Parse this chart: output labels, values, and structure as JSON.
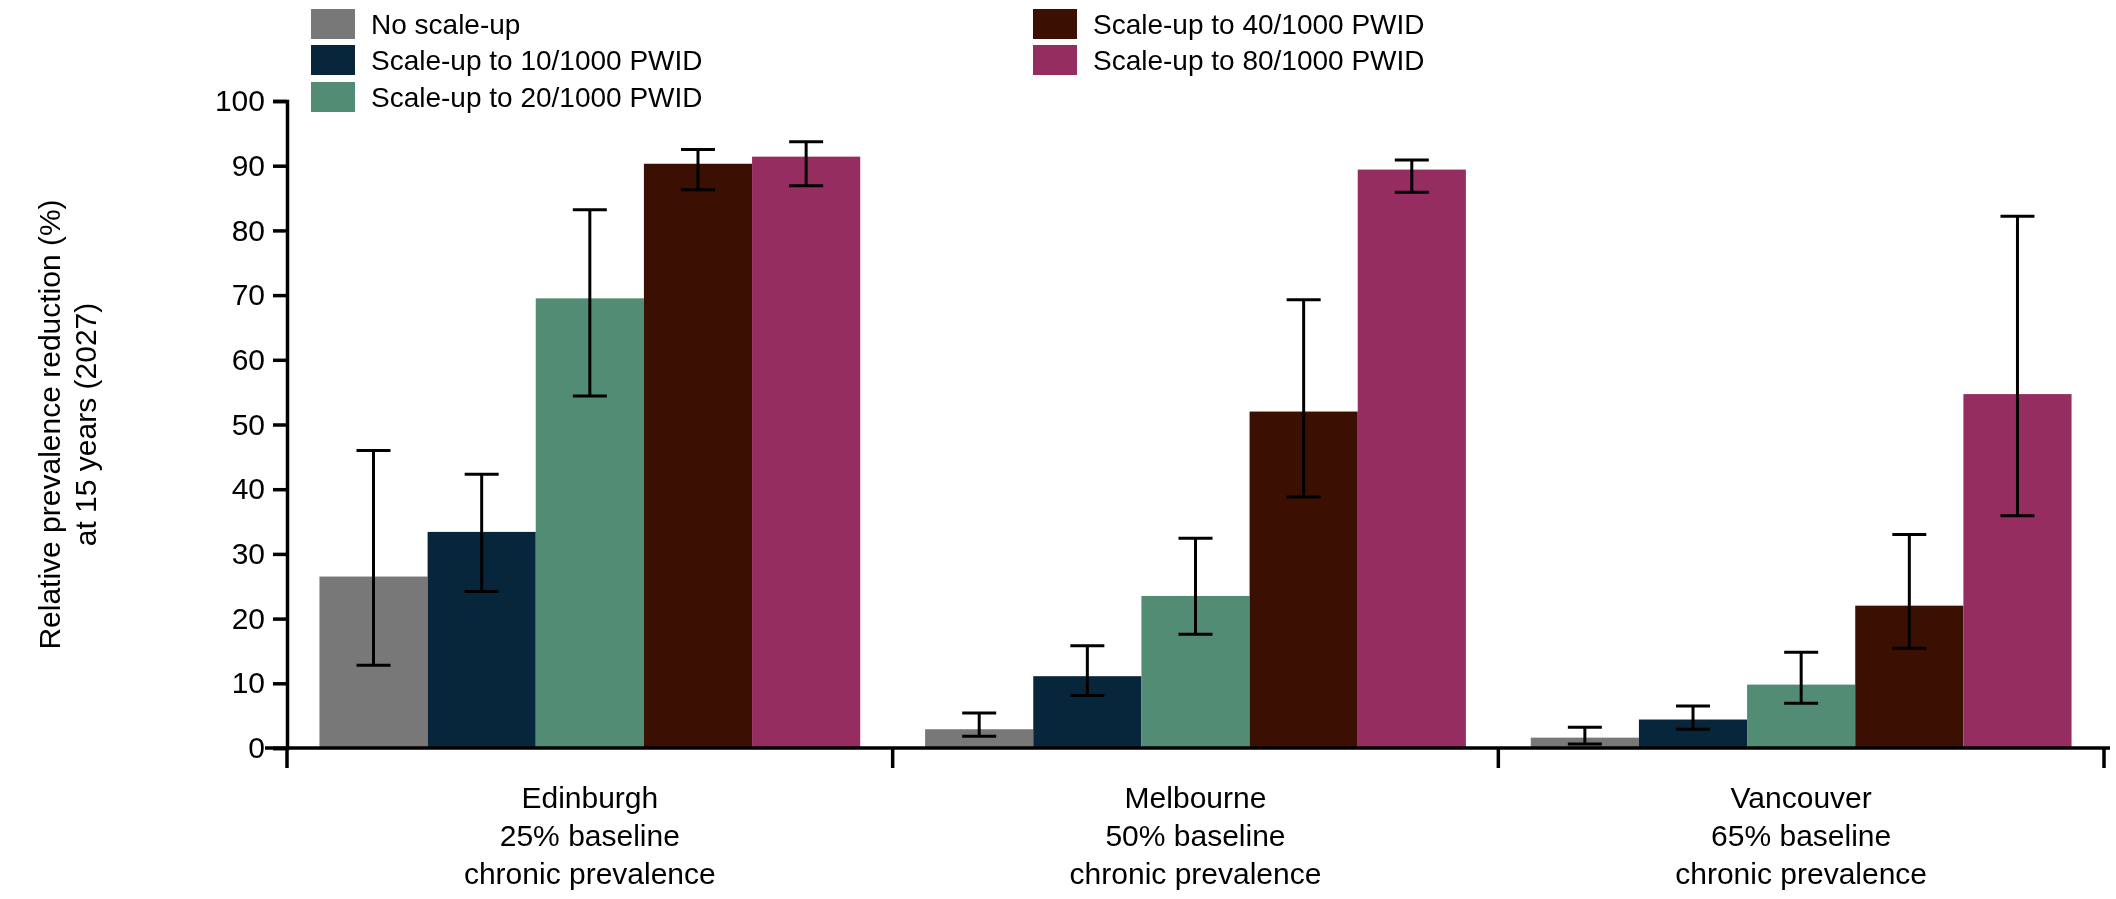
{
  "chart_data": {
    "type": "bar",
    "ylabel": "Relative prevalence reduction (%)\nat 15 years (2027)",
    "categories": [
      "Edinburgh\n25% baseline\nchronic prevalence",
      "Melbourne\n50% baseline\nchronic prevalence",
      "Vancouver\n65% baseline\nchronic prevalence"
    ],
    "series": [
      {
        "name": "No scale-up",
        "color": "#787878",
        "values": [
          26.5,
          2.9,
          1.6
        ],
        "errors": [
          [
            12.8,
            46
          ],
          [
            1.8,
            5.4
          ],
          [
            0.6,
            3.2
          ]
        ]
      },
      {
        "name": "Scale-up to 10/1000 PWID",
        "color": "#08263b",
        "values": [
          33.4,
          11.1,
          4.4
        ],
        "errors": [
          [
            24.2,
            42.3
          ],
          [
            8.1,
            15.8
          ],
          [
            2.9,
            6.5
          ]
        ]
      },
      {
        "name": "Scale-up to 20/1000 PWID",
        "color": "#528c74",
        "values": [
          69.5,
          23.5,
          9.8
        ],
        "errors": [
          [
            54.4,
            83.2
          ],
          [
            17.6,
            32.4
          ],
          [
            6.9,
            14.8
          ]
        ]
      },
      {
        "name": "Scale-up to 40/1000 PWID",
        "color": "#3b0f02",
        "values": [
          90.3,
          52,
          22
        ],
        "errors": [
          [
            86.3,
            92.5
          ],
          [
            38.8,
            69.3
          ],
          [
            15.4,
            33
          ]
        ]
      },
      {
        "name": "Scale-up to 80/1000 PWID",
        "color": "#952d60",
        "values": [
          91.4,
          89.4,
          54.7
        ],
        "errors": [
          [
            86.9,
            93.7
          ],
          [
            85.9,
            90.9
          ],
          [
            35.9,
            82.2
          ]
        ]
      }
    ],
    "ylim": [
      0,
      100
    ],
    "yticks": [
      0,
      10,
      20,
      30,
      40,
      50,
      60,
      70,
      80,
      90,
      100
    ],
    "grid": false,
    "legend": "top"
  }
}
